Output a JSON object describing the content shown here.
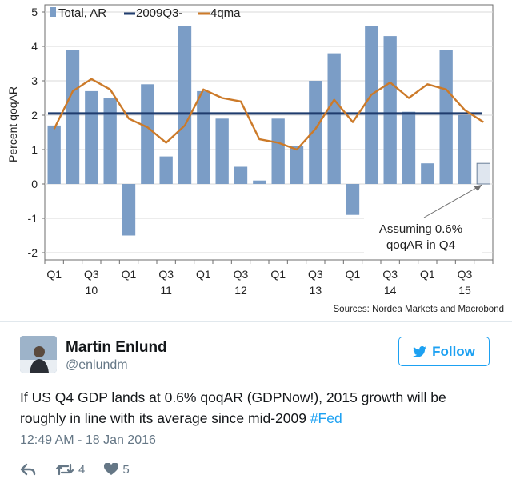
{
  "chart_data": {
    "type": "bar",
    "ylabel": "Percent qoqAR",
    "ylim": [
      -2,
      5
    ],
    "yticks": [
      -2,
      -1,
      0,
      1,
      2,
      3,
      4,
      5
    ],
    "grid": true,
    "legend_position": "top-left",
    "xtick_labels": [
      {
        "q": "Q1",
        "year": ""
      },
      {
        "q": "Q3",
        "year": "10"
      },
      {
        "q": "Q1",
        "year": ""
      },
      {
        "q": "Q3",
        "year": "11"
      },
      {
        "q": "Q1",
        "year": ""
      },
      {
        "q": "Q3",
        "year": "12"
      },
      {
        "q": "Q1",
        "year": ""
      },
      {
        "q": "Q3",
        "year": "13"
      },
      {
        "q": "Q1",
        "year": ""
      },
      {
        "q": "Q3",
        "year": "14"
      },
      {
        "q": "Q1",
        "year": ""
      },
      {
        "q": "Q3",
        "year": "15"
      }
    ],
    "categories": [
      "2010Q1",
      "2010Q2",
      "2010Q3",
      "2010Q4",
      "2011Q1",
      "2011Q2",
      "2011Q3",
      "2011Q4",
      "2012Q1",
      "2012Q2",
      "2012Q3",
      "2012Q4",
      "2013Q1",
      "2013Q2",
      "2013Q3",
      "2013Q4",
      "2014Q1",
      "2014Q2",
      "2014Q3",
      "2014Q4",
      "2015Q1",
      "2015Q2",
      "2015Q3",
      "2015Q4"
    ],
    "series": [
      {
        "name": "Total, AR",
        "kind": "bar",
        "color": "#7b9dc6",
        "values": [
          1.7,
          3.9,
          2.7,
          2.5,
          -1.5,
          2.9,
          0.8,
          4.6,
          2.7,
          1.9,
          0.5,
          0.1,
          1.9,
          1.1,
          3.0,
          3.8,
          -0.9,
          4.6,
          4.3,
          2.1,
          0.6,
          3.9,
          2.0,
          0.6
        ]
      },
      {
        "name": "2009Q3-",
        "kind": "hline",
        "color": "#1f3c6e",
        "value": 2.05
      },
      {
        "name": "4qma",
        "kind": "line",
        "color": "#cc7a29",
        "values": [
          1.6,
          2.7,
          3.05,
          2.75,
          1.9,
          1.65,
          1.2,
          1.7,
          2.75,
          2.5,
          2.4,
          1.3,
          1.2,
          1.0,
          1.6,
          2.45,
          1.8,
          2.6,
          2.95,
          2.5,
          2.9,
          2.75,
          2.15,
          1.8
        ]
      }
    ],
    "projected_bar": {
      "category": "2015Q4",
      "value": 0.6,
      "color": "#dfe6ef"
    },
    "annotation": {
      "line1": "Assuming 0.6%",
      "line2": "qoqAR in Q4"
    },
    "source": "Sources: Nordea Markets and Macrobond"
  },
  "tweet": {
    "author_name": "Martin Enlund",
    "handle": "@enlundm",
    "follow_label": "Follow",
    "text": "If US Q4 GDP lands at 0.6% qoqAR (GDPNow!), 2015 growth will be roughly in line with its average since mid-2009 ",
    "hashtag": "#Fed",
    "timestamp": "12:49 AM - 18 Jan 2016",
    "retweets": "4",
    "likes": "5"
  },
  "colors": {
    "twitter_blue": "#1da1f2",
    "meta_gray": "#657786"
  },
  "icons": [
    "reply-icon",
    "retweet-icon",
    "heart-icon",
    "twitter-bird-icon"
  ]
}
